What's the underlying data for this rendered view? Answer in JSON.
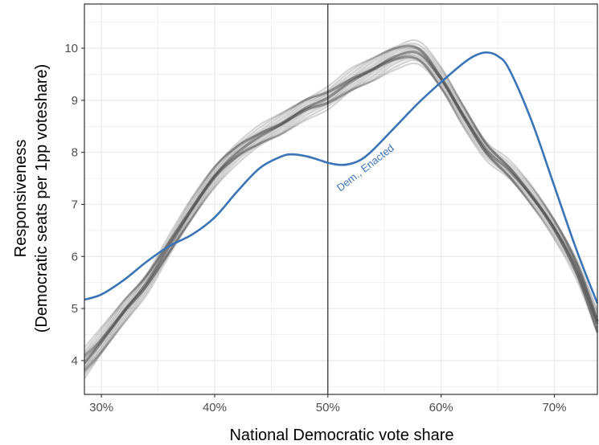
{
  "chart_data": {
    "type": "line",
    "xlabel": "National Democratic vote share",
    "ylabel_lines": [
      "Responsiveness",
      "(Democratic seats per 1pp voteshare)"
    ],
    "xlim": [
      0.285,
      0.738
    ],
    "ylim": [
      3.35,
      10.85
    ],
    "x_ticks": [
      {
        "value": 0.3,
        "label": "30%"
      },
      {
        "value": 0.4,
        "label": "40%"
      },
      {
        "value": 0.5,
        "label": "50%"
      },
      {
        "value": 0.6,
        "label": "60%"
      },
      {
        "value": 0.7,
        "label": "70%"
      }
    ],
    "y_ticks": [
      {
        "value": 4,
        "label": "4"
      },
      {
        "value": 5,
        "label": "5"
      },
      {
        "value": 6,
        "label": "6"
      },
      {
        "value": 7,
        "label": "7"
      },
      {
        "value": 8,
        "label": "8"
      },
      {
        "value": 9,
        "label": "9"
      },
      {
        "value": 10,
        "label": "10"
      }
    ],
    "grid": true,
    "reference_vline_x": 0.5,
    "colors": {
      "enacted": "#3a74b8",
      "ensemble": "#404040",
      "grid": "#ebebeb",
      "reference": "#000000",
      "panel_border": "#333333"
    },
    "series": [
      {
        "label": "Dem., Enacted",
        "x": [
          0.285,
          0.3,
          0.32,
          0.34,
          0.36,
          0.38,
          0.4,
          0.42,
          0.44,
          0.46,
          0.47,
          0.48,
          0.49,
          0.5,
          0.51,
          0.52,
          0.53,
          0.54,
          0.56,
          0.58,
          0.6,
          0.62,
          0.63,
          0.64,
          0.65,
          0.66,
          0.68,
          0.7,
          0.72,
          0.738
        ],
        "y": [
          5.17,
          5.27,
          5.55,
          5.9,
          6.2,
          6.42,
          6.75,
          7.25,
          7.7,
          7.93,
          7.96,
          7.93,
          7.87,
          7.8,
          7.76,
          7.78,
          7.87,
          8.05,
          8.5,
          8.95,
          9.35,
          9.72,
          9.86,
          9.92,
          9.85,
          9.6,
          8.6,
          7.35,
          6.1,
          5.1
        ],
        "label_anchor_x": 0.535,
        "label_anchor_y": 7.65
      }
    ],
    "ensemble": {
      "x": [
        0.285,
        0.3,
        0.32,
        0.34,
        0.36,
        0.38,
        0.4,
        0.42,
        0.44,
        0.46,
        0.48,
        0.5,
        0.52,
        0.54,
        0.56,
        0.58,
        0.6,
        0.62,
        0.64,
        0.66,
        0.68,
        0.7,
        0.72,
        0.738
      ],
      "center": [
        3.95,
        4.35,
        4.95,
        5.5,
        6.2,
        6.9,
        7.55,
        8.0,
        8.3,
        8.55,
        8.85,
        9.05,
        9.35,
        9.6,
        9.85,
        9.9,
        9.4,
        8.7,
        8.05,
        7.65,
        7.15,
        6.55,
        5.75,
        4.7
      ],
      "halfwidth": [
        0.3,
        0.25,
        0.22,
        0.2,
        0.2,
        0.2,
        0.2,
        0.2,
        0.2,
        0.2,
        0.2,
        0.22,
        0.22,
        0.22,
        0.22,
        0.22,
        0.2,
        0.2,
        0.18,
        0.18,
        0.18,
        0.18,
        0.2,
        0.22
      ]
    }
  }
}
